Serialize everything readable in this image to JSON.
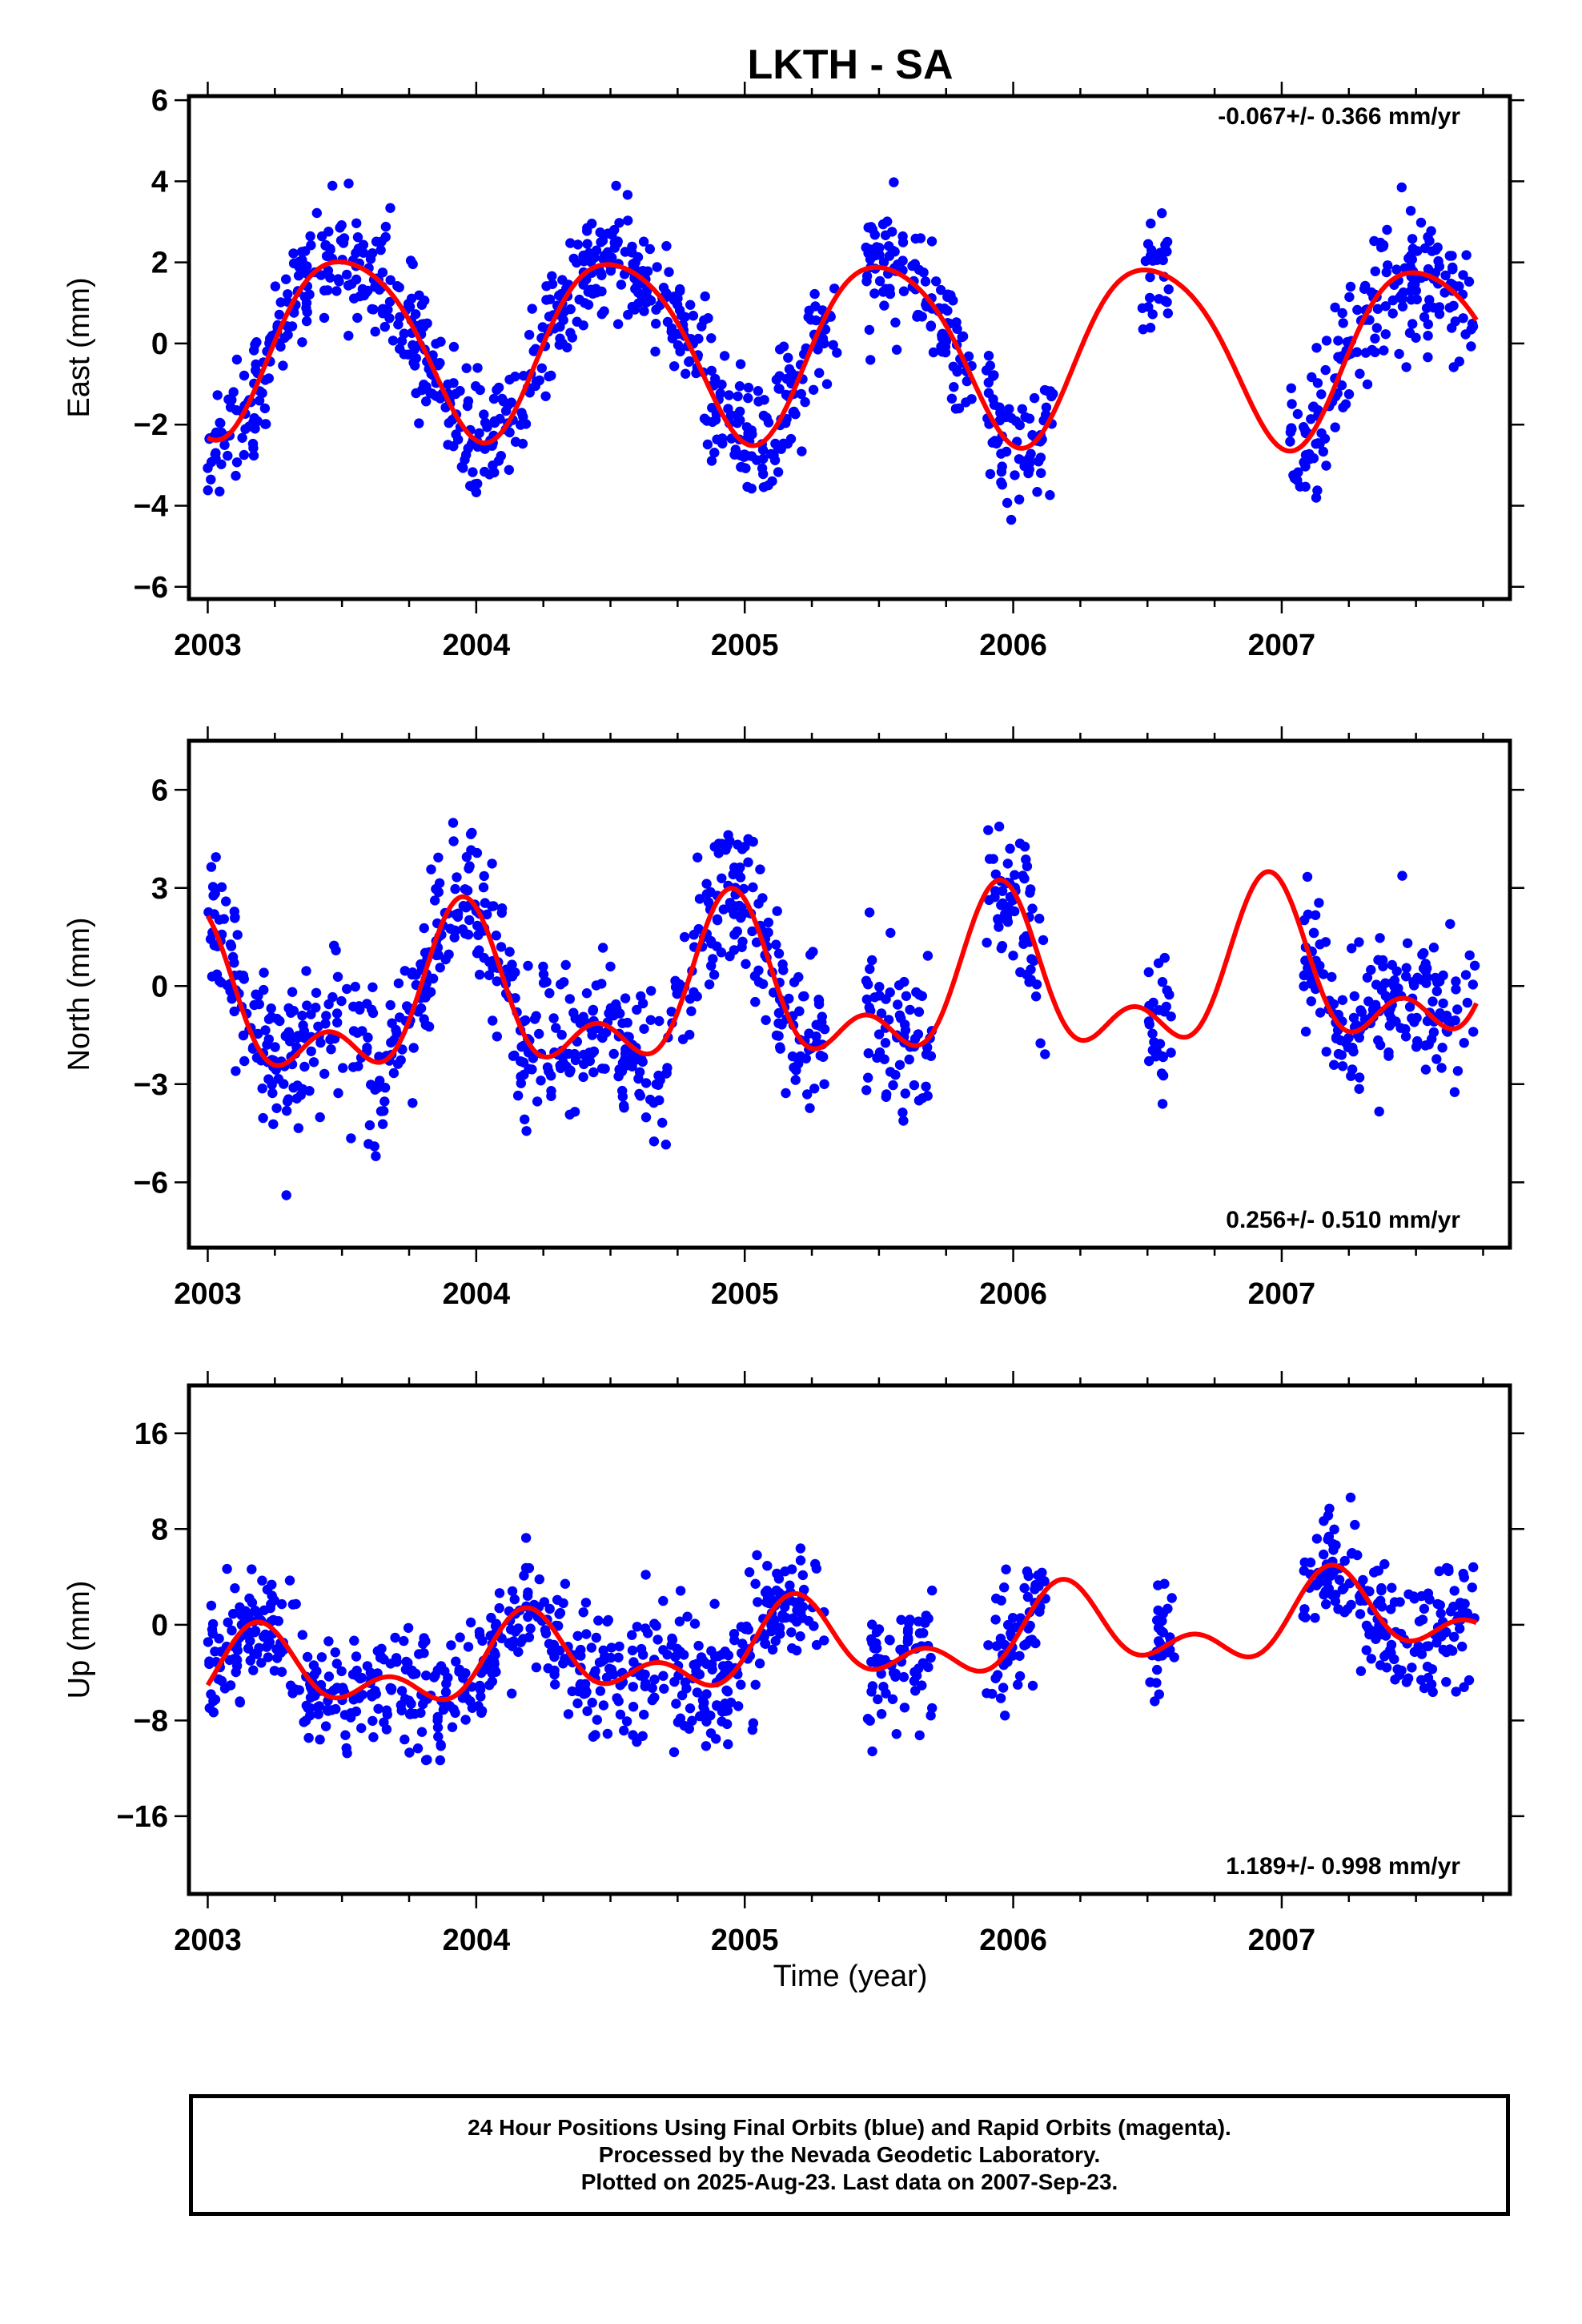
{
  "title": "LKTH - SA",
  "xlabel": "Time (year)",
  "caption": {
    "line1": "24 Hour Positions Using Final Orbits (blue) and Rapid Orbits (magenta).",
    "line2": "Processed by the Nevada Geodetic Laboratory.",
    "line3": "Plotted on 2025-Aug-23. Last data on 2007-Sep-23."
  },
  "colors": {
    "points": "#0000ff",
    "fit": "#ff0000"
  },
  "chart_data": [
    {
      "type": "scatter",
      "panel": "east",
      "ylabel": "East (mm)",
      "rate_text": "-0.067+/- 0.366 mm/yr",
      "rate_position": "top-right",
      "xlim": [
        2002.93,
        2007.85
      ],
      "ylim": [
        -6.3,
        6.1
      ],
      "xticks": [
        2003,
        2004,
        2005,
        2006,
        2007
      ],
      "yticks": [
        -6,
        -4,
        -2,
        0,
        2,
        4,
        6
      ],
      "fit_model": {
        "offset": -0.03,
        "rate": -0.067,
        "annual_amp": 2.2,
        "annual_peak": 0.52,
        "semiannual_amp": 0.3,
        "semiannual_peak": 0.3
      },
      "segments": [
        [
          2003.0,
          2004.45
        ],
        [
          2004.45,
          2005.35
        ],
        [
          2005.45,
          2005.85
        ],
        [
          2005.9,
          2006.15
        ],
        [
          2006.48,
          2006.58
        ],
        [
          2007.03,
          2007.72
        ]
      ],
      "scatter_sd": 1.1,
      "point_density": 280
    },
    {
      "type": "scatter",
      "panel": "north",
      "ylabel": "North (mm)",
      "rate_text": "0.256+/- 0.510 mm/yr",
      "rate_position": "bottom-right",
      "xlim": [
        2002.93,
        2007.85
      ],
      "ylim": [
        -8.0,
        7.5
      ],
      "xticks": [
        2003,
        2004,
        2005,
        2006,
        2007
      ],
      "yticks": [
        -6,
        -3,
        0,
        3,
        6
      ],
      "fit_model": {
        "offset": -0.3,
        "rate": 0.256,
        "annual_amp": 2.0,
        "annual_peak": 0.95,
        "semiannual_amp": 1.3,
        "semiannual_peak": 0.45
      },
      "segments": [
        [
          2003.0,
          2004.45
        ],
        [
          2004.45,
          2005.3
        ],
        [
          2005.45,
          2005.7
        ],
        [
          2005.9,
          2006.12
        ],
        [
          2006.5,
          2006.6
        ],
        [
          2007.08,
          2007.72
        ]
      ],
      "scatter_sd": 1.6,
      "point_density": 280
    },
    {
      "type": "scatter",
      "panel": "up",
      "ylabel": "Up (mm)",
      "rate_text": "1.189+/- 0.998 mm/yr",
      "rate_position": "bottom-right",
      "xlim": [
        2002.93,
        2007.85
      ],
      "ylim": [
        -22.5,
        20
      ],
      "xticks": [
        2003,
        2004,
        2005,
        2006,
        2007
      ],
      "yticks": [
        -16,
        -8,
        0,
        8,
        16
      ],
      "fit_model": {
        "offset": -2.2,
        "rate": 1.189,
        "annual_amp": 2.6,
        "annual_peak": 0.2,
        "semiannual_amp": 2.0,
        "semiannual_peak": 0.18
      },
      "segments": [
        [
          2003.0,
          2004.45
        ],
        [
          2004.45,
          2005.3
        ],
        [
          2005.45,
          2005.7
        ],
        [
          2005.9,
          2006.12
        ],
        [
          2006.5,
          2006.6
        ],
        [
          2007.08,
          2007.72
        ]
      ],
      "scatter_sd": 3.6,
      "point_density": 280
    }
  ]
}
